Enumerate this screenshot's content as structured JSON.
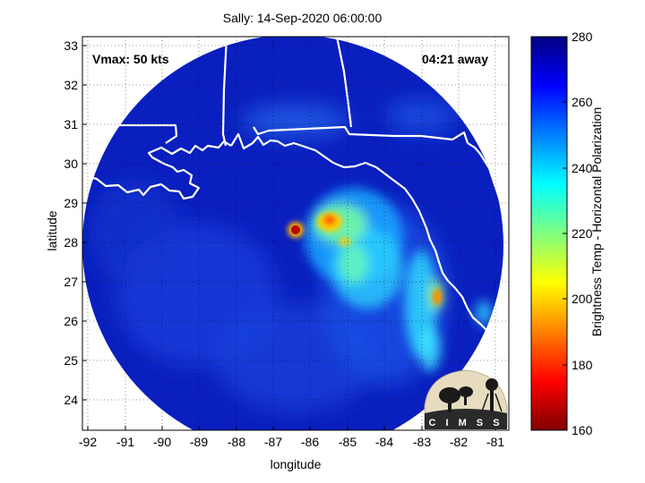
{
  "title": "Sally: 14-Sep-2020 06:00:00",
  "vmax_label": "Vmax: 50 kts",
  "time_away_label": "04:21 away",
  "xlabel": "longitude",
  "ylabel": "latitude",
  "colorbar_label": "Brightness Temp - Horizontal Polarization",
  "logo_text": "C I M S S",
  "x_ticks": [
    "-92",
    "-91",
    "-90",
    "-89",
    "-88",
    "-87",
    "-86",
    "-85",
    "-84",
    "-83",
    "-82",
    "-81"
  ],
  "y_ticks": [
    "24",
    "25",
    "26",
    "27",
    "28",
    "29",
    "30",
    "31",
    "32",
    "33"
  ],
  "colorbar_ticks": [
    "160",
    "180",
    "200",
    "220",
    "240",
    "260",
    "280"
  ],
  "colormap": "jet",
  "colors": {
    "background_field": "#0a1fbf",
    "coastline": "#ffffff",
    "hot_core": "#b00000"
  },
  "map": {
    "xlim": [
      -92.1,
      -80.6
    ],
    "ylim": [
      23.2,
      33.3
    ],
    "clim": [
      160,
      280
    ],
    "center_lon": -86.35,
    "center_lat": 28.2,
    "radius_deg": 5.45,
    "grid": "dotted"
  }
}
